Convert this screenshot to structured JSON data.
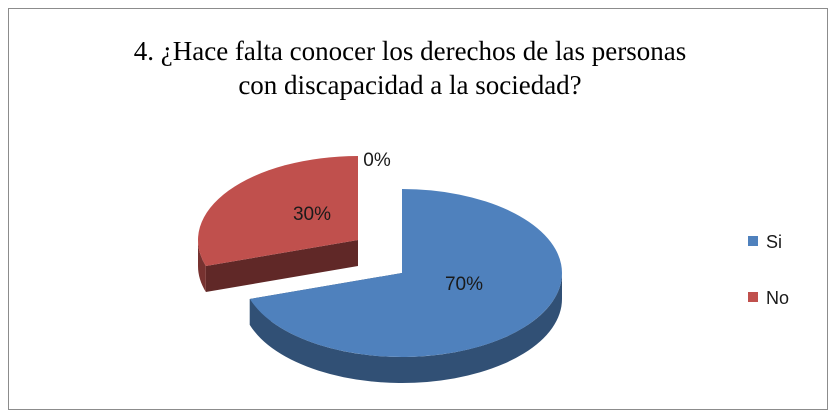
{
  "chart_data": {
    "type": "pie",
    "title": "4. ¿Hace falta conocer los derechos de las personas con discapacidad a la sociedad?",
    "title_lines": [
      "4. ¿Hace falta conocer los derechos de las personas",
      "con discapacidad a la sociedad?"
    ],
    "three_d": true,
    "exploded": true,
    "legend_position": "right",
    "slices": [
      {
        "label": "Si",
        "value": 70,
        "display": "70%",
        "color": "#4f81bd"
      },
      {
        "label": "No",
        "value": 30,
        "display": "30%",
        "color": "#c0504d"
      },
      {
        "label": "",
        "value": 0,
        "display": "0%",
        "color": "#9bbb59"
      }
    ]
  }
}
